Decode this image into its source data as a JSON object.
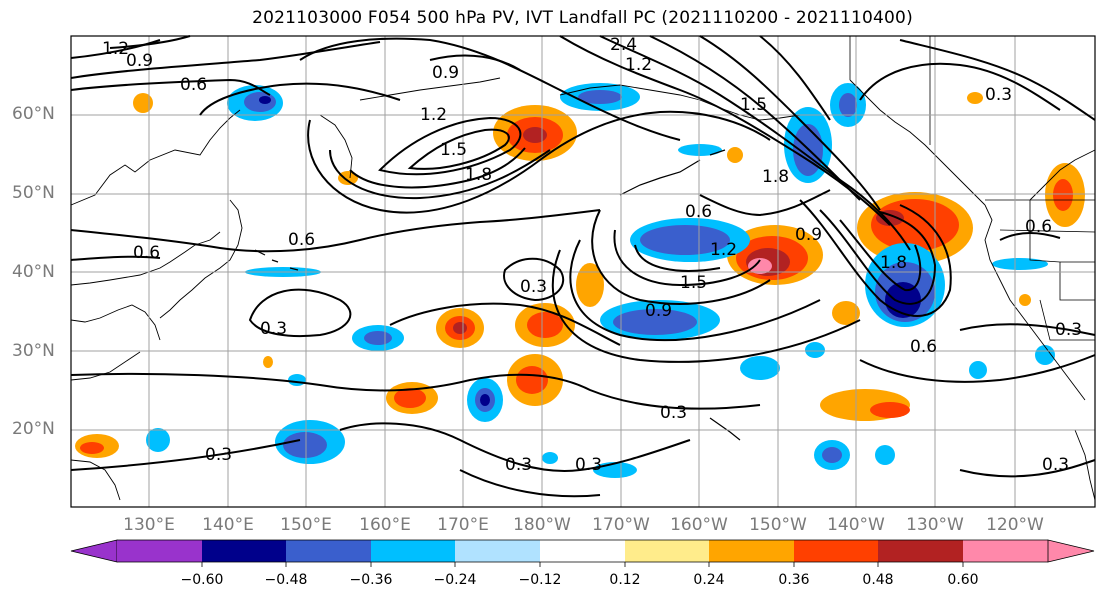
{
  "title": "2021103000 F054 500 hPa PV, IVT Landfall PC (2021110200 - 2021110400)",
  "lat_labels": [
    "60°N",
    "50°N",
    "40°N",
    "30°N",
    "20°N"
  ],
  "lon_labels": [
    "130°E",
    "140°E",
    "150°E",
    "160°E",
    "170°E",
    "180°W",
    "170°W",
    "160°W",
    "150°W",
    "140°W",
    "130°W",
    "120°W"
  ],
  "colorbar": {
    "ticks": [
      "−0.60",
      "−0.48",
      "−0.36",
      "−0.24",
      "−0.12",
      "0.12",
      "0.24",
      "0.36",
      "0.48",
      "0.60"
    ],
    "colors": [
      "#9933cc",
      "#00008b",
      "#3a5fcd",
      "#00bfff",
      "#b0e2ff",
      "#ffffff",
      "#ffec8b",
      "#ffa500",
      "#ff4000",
      "#b22222",
      "#ff88aa"
    ]
  },
  "contour_labels": [
    "1.2",
    "0.9",
    "0.6",
    "0.9",
    "1.2",
    "1.5",
    "1.8",
    "2.4",
    "1.2",
    "1.5",
    "1.8",
    "0.6",
    "0.6",
    "1.2",
    "0.9",
    "1.5",
    "0.9",
    "1.8",
    "0.6",
    "0.3",
    "0.3",
    "0.3",
    "0.6",
    "0.3",
    "0.3",
    "0.3",
    "0.6",
    "0.3",
    "0.3",
    "0.3"
  ]
}
